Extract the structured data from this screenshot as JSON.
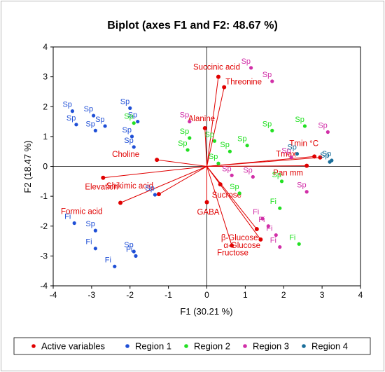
{
  "chart_data": {
    "type": "scatter",
    "title": "Biplot (axes F1 and F2: 48.67 %)",
    "xlabel": "F1 (30.21 %)",
    "ylabel": "F2 (18.47 %)",
    "xlim": [
      -4,
      4
    ],
    "ylim": [
      -4,
      4
    ],
    "xticks": [
      "-4",
      "-3",
      "-2",
      "-1",
      "0",
      "1",
      "2",
      "3",
      "4"
    ],
    "yticks": [
      "-4",
      "-3",
      "-2",
      "-1",
      "0",
      "1",
      "2",
      "3",
      "4"
    ],
    "legend_position": "bottom",
    "colors": {
      "Active variables": "#e00000",
      "Region 1": "#1f4fd6",
      "Region 2": "#22e022",
      "Region 3": "#d12fa8",
      "Region 4": "#1a6e9a"
    },
    "variables": [
      {
        "label": "Succinic acid",
        "x": 0.3,
        "y": 3.0
      },
      {
        "label": "Threonine",
        "x": 0.45,
        "y": 2.65
      },
      {
        "label": "Alanine",
        "x": -0.05,
        "y": 1.28
      },
      {
        "label": "Choline",
        "x": -1.3,
        "y": 0.22
      },
      {
        "label": "Elevation",
        "x": -2.7,
        "y": -0.38
      },
      {
        "label": "Shikimic acid",
        "x": -1.25,
        "y": -0.93
      },
      {
        "label": "Formic acid",
        "x": -2.25,
        "y": -1.22
      },
      {
        "label": "GABA",
        "x": 0.0,
        "y": -1.2
      },
      {
        "label": "Sucrose",
        "x": 0.35,
        "y": -0.6
      },
      {
        "label": "Fructose",
        "x": 0.65,
        "y": -2.65
      },
      {
        "label": "α-Glucose",
        "x": 1.4,
        "y": -2.45
      },
      {
        "label": "β-Glucose",
        "x": 1.3,
        "y": -2.1
      },
      {
        "label": "Tmin °C",
        "x": 2.95,
        "y": 0.3
      },
      {
        "label": "Tmax",
        "x": 2.8,
        "y": 0.33
      },
      {
        "label": "Pan mm",
        "x": 2.6,
        "y": 0.02
      }
    ],
    "series": [
      {
        "name": "Region 1",
        "points": [
          {
            "label": "Sp",
            "x": -3.5,
            "y": 1.85
          },
          {
            "label": "Sp",
            "x": -3.4,
            "y": 1.4
          },
          {
            "label": "Sp",
            "x": -2.95,
            "y": 1.7
          },
          {
            "label": "Sp",
            "x": -2.9,
            "y": 1.2
          },
          {
            "label": "Sp",
            "x": -2.65,
            "y": 1.35
          },
          {
            "label": "Sp",
            "x": -2.0,
            "y": 1.95
          },
          {
            "label": "Sp",
            "x": -1.8,
            "y": 1.5
          },
          {
            "label": "Sp",
            "x": -1.95,
            "y": 1.0
          },
          {
            "label": "Sp",
            "x": -1.9,
            "y": 0.65
          },
          {
            "label": "Sp",
            "x": -1.35,
            "y": -0.95
          },
          {
            "label": "Fi",
            "x": -3.45,
            "y": -1.9
          },
          {
            "label": "Sp",
            "x": -2.9,
            "y": -2.15
          },
          {
            "label": "Fi",
            "x": -2.9,
            "y": -2.75
          },
          {
            "label": "Sp",
            "x": -1.9,
            "y": -2.85
          },
          {
            "label": "Fi",
            "x": -1.85,
            "y": -3.0
          },
          {
            "label": "Fi",
            "x": -2.4,
            "y": -3.35
          }
        ]
      },
      {
        "name": "Region 2",
        "points": [
          {
            "label": "Sp",
            "x": -1.9,
            "y": 1.45
          },
          {
            "label": "Sp",
            "x": -0.45,
            "y": 0.95
          },
          {
            "label": "Sp",
            "x": -0.5,
            "y": 0.55
          },
          {
            "label": "Sp",
            "x": 0.2,
            "y": 0.85
          },
          {
            "label": "Sp",
            "x": 0.6,
            "y": 0.5
          },
          {
            "label": "Sp",
            "x": 0.3,
            "y": 0.1
          },
          {
            "label": "Sp",
            "x": 1.05,
            "y": 0.7
          },
          {
            "label": "Sp",
            "x": 1.7,
            "y": 1.2
          },
          {
            "label": "Sp",
            "x": 2.55,
            "y": 1.35
          },
          {
            "label": "Sp",
            "x": 0.85,
            "y": -0.9
          },
          {
            "label": "Sp",
            "x": 1.95,
            "y": -0.5
          },
          {
            "label": "Fi",
            "x": 1.9,
            "y": -1.4
          },
          {
            "label": "Fi",
            "x": 2.4,
            "y": -2.6
          }
        ]
      },
      {
        "name": "Region 3",
        "points": [
          {
            "label": "Sp",
            "x": 1.15,
            "y": 3.3
          },
          {
            "label": "Sp",
            "x": 1.7,
            "y": 2.85
          },
          {
            "label": "Sp",
            "x": -0.45,
            "y": 1.5
          },
          {
            "label": "Sp",
            "x": 3.15,
            "y": 1.15
          },
          {
            "label": "Sp",
            "x": 0.65,
            "y": -0.3
          },
          {
            "label": "Sp",
            "x": 1.2,
            "y": -0.35
          },
          {
            "label": "Sp",
            "x": 2.6,
            "y": -0.85
          },
          {
            "label": "Sp",
            "x": 2.2,
            "y": 0.3
          },
          {
            "label": "Fi",
            "x": 1.45,
            "y": -1.75
          },
          {
            "label": "Fi",
            "x": 1.6,
            "y": -2.0
          },
          {
            "label": "Fi",
            "x": 1.8,
            "y": -2.3
          },
          {
            "label": "Fi",
            "x": 1.9,
            "y": -2.7
          }
        ]
      },
      {
        "name": "Region 4",
        "points": [
          {
            "label": "Sp",
            "x": 2.35,
            "y": 0.42
          },
          {
            "label": "Sp",
            "x": 3.2,
            "y": 0.15
          },
          {
            "label": "Sp",
            "x": 3.25,
            "y": 0.2
          }
        ]
      }
    ]
  }
}
